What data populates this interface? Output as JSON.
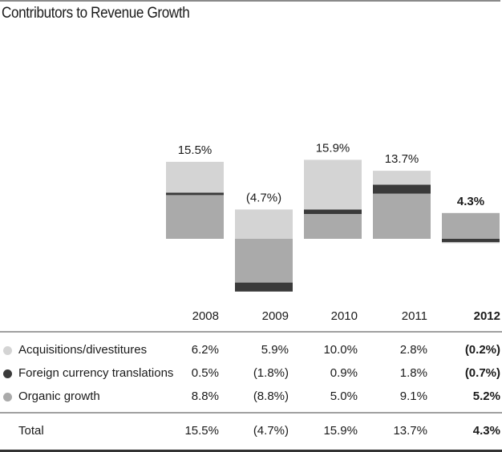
{
  "title": "Contributors to Revenue Growth",
  "colors": {
    "acquisitions": "#d4d4d4",
    "fx": "#3a3a3a",
    "organic": "#aaaaaa",
    "rule": "#8a8a8a",
    "bottom_rule": "#333333"
  },
  "chart_data": {
    "type": "bar",
    "stacked": true,
    "title": "Contributors to Revenue Growth",
    "categories": [
      "2008",
      "2009",
      "2010",
      "2011",
      "2012"
    ],
    "highlight_category": "2012",
    "series": [
      {
        "name": "Acquisitions/divestitures",
        "values": [
          6.2,
          5.9,
          10.0,
          2.8,
          -0.2
        ],
        "labels": [
          "6.2%",
          "5.9%",
          "10.0%",
          "2.8%",
          "(0.2%)"
        ]
      },
      {
        "name": "Foreign currency translations",
        "values": [
          0.5,
          -1.8,
          0.9,
          1.8,
          -0.7
        ],
        "labels": [
          "0.5%",
          "(1.8%)",
          "0.9%",
          "1.8%",
          "(0.7%)"
        ]
      },
      {
        "name": "Organic growth",
        "values": [
          8.8,
          -8.8,
          5.0,
          9.1,
          5.2
        ],
        "labels": [
          "8.8%",
          "(8.8%)",
          "5.0%",
          "9.1%",
          "5.2%"
        ]
      }
    ],
    "totals": [
      15.5,
      -4.7,
      15.9,
      13.7,
      4.3
    ],
    "total_labels": [
      "15.5%",
      "(4.7%)",
      "15.9%",
      "13.7%",
      "4.3%"
    ],
    "total_row_label": "Total",
    "legend": "table-below",
    "xlabel": "",
    "ylabel": "",
    "grid": false
  }
}
